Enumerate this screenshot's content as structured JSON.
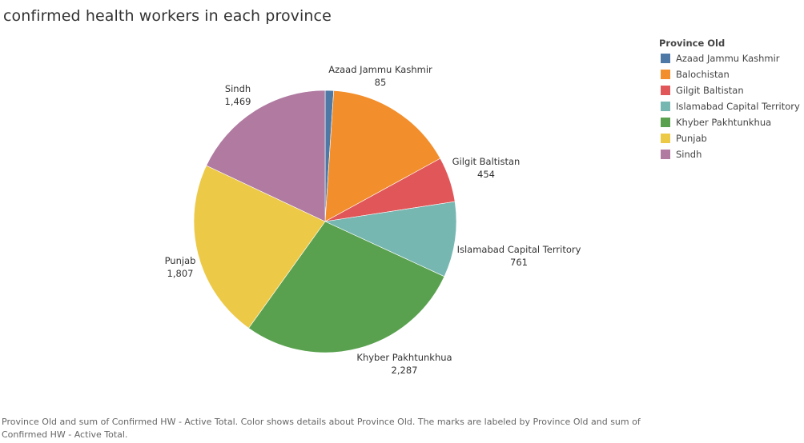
{
  "chart_data": {
    "type": "pie",
    "title": "confirmed health workers in each province",
    "legend_title": "Province Old",
    "legend_position": "right",
    "categories": [
      "Azaad Jammu Kashmir",
      "Balochistan",
      "Gilgit Baltistan",
      "Islamabad Capital Territory",
      "Khyber Pakhtunkhua",
      "Punjab",
      "Sindh"
    ],
    "values": [
      85,
      1305,
      454,
      761,
      2287,
      1807,
      1469
    ],
    "value_labels": [
      "85",
      "",
      "454",
      "761",
      "2,287",
      "1,807",
      "1,469"
    ],
    "colors": [
      "#4e79a7",
      "#f28e2b",
      "#e15759",
      "#76b7b2",
      "#59a14f",
      "#edc948",
      "#b07aa1"
    ]
  },
  "caption": "Province Old and sum of Confirmed HW - Active Total.  Color shows details about Province Old.  The marks are labeled by Province Old and sum of Confirmed HW - Active Total."
}
